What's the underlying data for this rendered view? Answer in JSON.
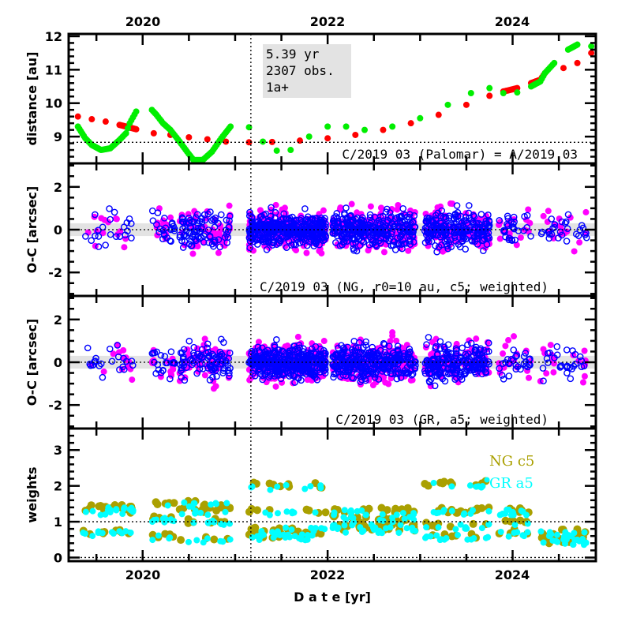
{
  "chart_data": [
    {
      "type": "scatter",
      "ylabel": "distance [au]",
      "ylim": [
        8.2,
        12.07
      ],
      "xlim": [
        2019.2,
        2024.9
      ],
      "yticks": [
        9,
        10,
        11,
        12
      ],
      "top_xticks": [
        "2020",
        "2022",
        "2024"
      ],
      "hline": 8.83,
      "vline": 2021.17,
      "info_box": [
        "5.39 yr",
        "2307 obs.",
        "1a+"
      ],
      "annotation": "C/2019 03 (Palomar) = A/2019 03",
      "series": [
        {
          "color": "#ff0000",
          "points": [
            [
              2019.3,
              9.6
            ],
            [
              2019.45,
              9.52
            ],
            [
              2019.6,
              9.45
            ],
            [
              2019.75,
              9.35
            ],
            [
              2019.85,
              9.28
            ],
            [
              2019.93,
              9.22
            ],
            [
              2020.12,
              9.1
            ],
            [
              2020.3,
              9.05
            ],
            [
              2020.5,
              8.98
            ],
            [
              2020.7,
              8.92
            ],
            [
              2020.9,
              8.85
            ],
            [
              2021.15,
              8.83
            ],
            [
              2021.4,
              8.84
            ],
            [
              2021.7,
              8.88
            ],
            [
              2022.0,
              8.95
            ],
            [
              2022.3,
              9.05
            ],
            [
              2022.6,
              9.2
            ],
            [
              2022.9,
              9.4
            ],
            [
              2023.2,
              9.65
            ],
            [
              2023.5,
              9.95
            ],
            [
              2023.75,
              10.22
            ],
            [
              2023.9,
              10.35
            ],
            [
              2023.95,
              10.38
            ],
            [
              2024.05,
              10.45
            ],
            [
              2024.2,
              10.6
            ],
            [
              2024.3,
              10.7
            ],
            [
              2024.35,
              10.9
            ],
            [
              2024.55,
              11.05
            ],
            [
              2024.7,
              11.2
            ],
            [
              2024.85,
              11.5
            ]
          ]
        },
        {
          "color": "#00ee00",
          "points": [
            [
              2019.3,
              9.3
            ],
            [
              2019.38,
              8.95
            ],
            [
              2019.45,
              8.75
            ],
            [
              2019.55,
              8.6
            ],
            [
              2019.65,
              8.65
            ],
            [
              2019.75,
              8.9
            ],
            [
              2019.82,
              9.1
            ],
            [
              2019.86,
              9.4
            ],
            [
              2019.93,
              9.75
            ],
            [
              2020.1,
              9.8
            ],
            [
              2020.15,
              9.65
            ],
            [
              2020.22,
              9.4
            ],
            [
              2020.3,
              9.2
            ],
            [
              2020.4,
              8.85
            ],
            [
              2020.48,
              8.55
            ],
            [
              2020.55,
              8.3
            ],
            [
              2020.65,
              8.3
            ],
            [
              2020.75,
              8.55
            ],
            [
              2020.85,
              8.95
            ],
            [
              2020.95,
              9.3
            ],
            [
              2021.15,
              9.28
            ],
            [
              2021.3,
              8.85
            ],
            [
              2021.45,
              8.58
            ],
            [
              2021.6,
              8.6
            ],
            [
              2021.8,
              9.0
            ],
            [
              2022.0,
              9.3
            ],
            [
              2022.2,
              9.3
            ],
            [
              2022.4,
              9.2
            ],
            [
              2022.7,
              9.3
            ],
            [
              2023.0,
              9.55
            ],
            [
              2023.3,
              9.95
            ],
            [
              2023.55,
              10.3
            ],
            [
              2023.75,
              10.45
            ],
            [
              2023.9,
              10.3
            ],
            [
              2024.05,
              10.32
            ],
            [
              2024.2,
              10.5
            ],
            [
              2024.3,
              10.65
            ],
            [
              2024.35,
              10.9
            ],
            [
              2024.45,
              11.2
            ],
            [
              2024.6,
              11.6
            ],
            [
              2024.7,
              11.75
            ],
            [
              2024.85,
              11.7
            ]
          ]
        }
      ]
    },
    {
      "type": "scatter",
      "ylabel": "O-C [arcsec]",
      "ylim": [
        -3.1,
        3.1
      ],
      "yticks": [
        -2,
        0,
        2
      ],
      "band": [
        -0.3,
        0.3
      ],
      "annotation": "C/2019 03 (NG, r0=10 au, c5; weighted)",
      "series": [
        {
          "marker": "filled",
          "color": "#ff00ff"
        },
        {
          "marker": "open-circle",
          "color": "#0000ff"
        }
      ],
      "observation_arcs": [
        [
          2019.35,
          2019.9,
          0.45,
          40
        ],
        [
          2020.1,
          2020.35,
          0.4,
          40
        ],
        [
          2020.4,
          2020.95,
          0.45,
          160
        ],
        [
          2021.15,
          2021.98,
          0.4,
          700
        ],
        [
          2022.05,
          2022.95,
          0.45,
          550
        ],
        [
          2023.05,
          2023.75,
          0.45,
          380
        ],
        [
          2023.85,
          2024.2,
          0.45,
          50
        ],
        [
          2024.3,
          2024.8,
          0.4,
          50
        ]
      ]
    },
    {
      "type": "scatter",
      "ylabel": "O-C [arcsec]",
      "ylim": [
        -3.1,
        3.1
      ],
      "yticks": [
        -2,
        0,
        2
      ],
      "band": [
        -0.3,
        0.3
      ],
      "annotation": "C/2019 03 (GR, a5; weighted)",
      "series": [
        {
          "marker": "filled",
          "color": "#ff00ff"
        },
        {
          "marker": "open-circle",
          "color": "#0000ff"
        }
      ]
    },
    {
      "type": "scatter",
      "ylabel": "weights",
      "xlabel": "D a t e [yr]",
      "ylim": [
        -0.1,
        3.6
      ],
      "yticks": [
        0,
        1,
        2,
        3
      ],
      "hline": 1,
      "bottom_xticks": [
        "2020",
        "2022",
        "2024"
      ],
      "series": [
        {
          "name": "NG c5",
          "color": "#aaa000"
        },
        {
          "name": "GR a5",
          "color": "#00ffff"
        }
      ],
      "weight_levels": [
        [
          2019.35,
          2019.9,
          [
            1.3,
            1.4,
            0.7
          ]
        ],
        [
          2020.1,
          2020.35,
          [
            1.5,
            0.6,
            1.1
          ]
        ],
        [
          2020.4,
          2020.95,
          [
            1.5,
            1.3,
            0.5,
            1.0
          ]
        ],
        [
          2021.15,
          2021.98,
          [
            0.7,
            0.8,
            0.6,
            1.3,
            2.0
          ]
        ],
        [
          2022.05,
          2022.95,
          [
            1.3,
            0.9,
            0.8,
            1.1
          ]
        ],
        [
          2023.05,
          2023.75,
          [
            1.3,
            0.6,
            0.9,
            2.05
          ]
        ],
        [
          2023.85,
          2024.2,
          [
            1.0,
            0.7,
            1.3
          ]
        ],
        [
          2024.3,
          2024.8,
          [
            0.5,
            0.45,
            0.7
          ]
        ]
      ]
    }
  ]
}
